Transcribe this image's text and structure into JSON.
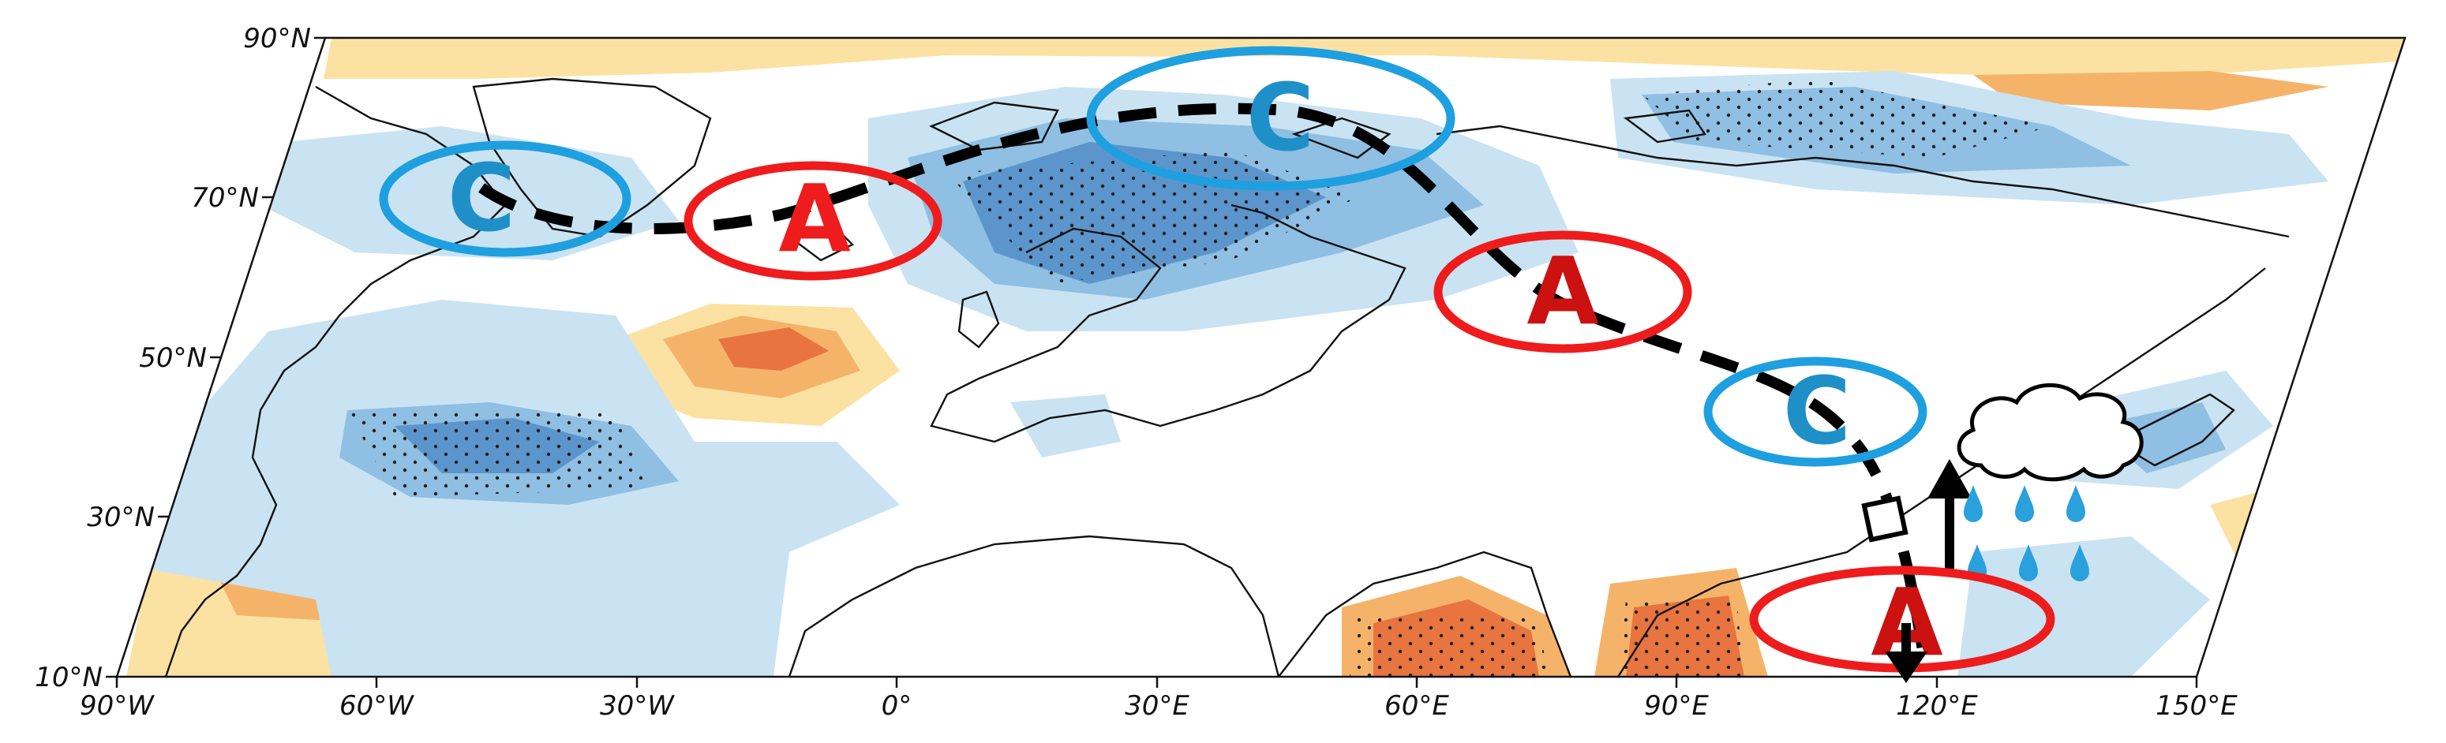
{
  "map": {
    "y_axis_labels": [
      "90°N",
      "70°N",
      "50°N",
      "30°N",
      "10°N"
    ],
    "x_axis_labels": [
      "90°W",
      "60°W",
      "30°W",
      "0°",
      "30°E",
      "60°E",
      "90°E",
      "120°E",
      "150°E"
    ],
    "wave_train_centers": [
      {
        "letter": "C",
        "label": "cyclone"
      },
      {
        "letter": "A",
        "label": "anticyclone"
      },
      {
        "letter": "C",
        "label": "cyclone"
      },
      {
        "letter": "A",
        "label": "anticyclone"
      },
      {
        "letter": "C",
        "label": "cyclone"
      },
      {
        "letter": "A",
        "label": "anticyclone"
      }
    ],
    "colors": {
      "cyclone": "#1e9fe0",
      "cyclone_letter": "#1f8fc8",
      "anticyclone": "#ee1c1c",
      "anticyclone_letter": "#cc1111",
      "wave_path": "#000000",
      "rain": "#2aa0dc",
      "negative_light": "#c9e3f3",
      "negative_mid": "#8fbfe2",
      "negative_dark": "#5b95cc",
      "positive_light": "#fbe2a2",
      "positive_mid": "#f5b36a",
      "positive_dark": "#e8743f"
    },
    "icons": [
      "cloud-icon",
      "raindrop-icon",
      "up-arrow-icon",
      "down-arrow-icon",
      "square-marker-icon"
    ]
  }
}
